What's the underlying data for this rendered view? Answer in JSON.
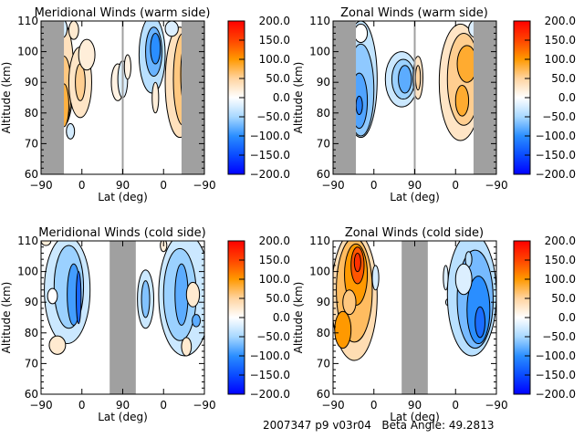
{
  "footer": {
    "text": "2007347 p9 v03r04   Beta Angle: 49.2813"
  },
  "colorbar": {
    "ticks": [
      "200.0",
      "150.0",
      "100.0",
      "50.0",
      "0.0",
      "−50.0",
      "−100.0",
      "−150.0",
      "−200.0"
    ],
    "range": [
      -200,
      200
    ],
    "stops": [
      {
        "v": 200,
        "c": "#ff0000"
      },
      {
        "v": 150,
        "c": "#ff4400"
      },
      {
        "v": 100,
        "c": "#ff9900"
      },
      {
        "v": 50,
        "c": "#ffd4a0"
      },
      {
        "v": 0,
        "c": "#ffffff"
      },
      {
        "v": -50,
        "c": "#a8d8ff"
      },
      {
        "v": -100,
        "c": "#2a8eff"
      },
      {
        "v": -150,
        "c": "#0a4bff"
      },
      {
        "v": -200,
        "c": "#0000ff"
      }
    ]
  },
  "chart_data": [
    {
      "type": "heatmap",
      "id": "meridional-warm",
      "title": "Meridional Winds (warm side)",
      "xlabel": "Lat (deg)",
      "ylabel": "Altitude (km)",
      "xticks": [
        "−90",
        "0",
        "90",
        "0",
        "−90"
      ],
      "yticks": [
        "60",
        "70",
        "80",
        "90",
        "100",
        "110"
      ],
      "ylim": [
        60,
        110
      ],
      "xlim_note": "two half-orbits: -90 to 90 (ascending), 90 to -90 (descending)",
      "gray_bands": [
        [
          -90,
          -70
        ],
        [
          -70,
          -90
        ]
      ],
      "divider": "90",
      "colorbar_range": [
        -200,
        200
      ],
      "features": [
        {
          "region": "lat -70..-30",
          "alt": [
            75,
            110
          ],
          "value_range": [
            0,
            75
          ],
          "sign": "positive"
        },
        {
          "region": "lat -60..-50",
          "alt": [
            73,
            78
          ],
          "value": -25
        },
        {
          "region": "lat 90 ascending",
          "alt": [
            85,
            100
          ],
          "value_range": [
            -25,
            25
          ]
        },
        {
          "region": "lat 0..-40 descending",
          "alt": [
            93,
            110
          ],
          "value_range": [
            -100,
            0
          ]
        },
        {
          "region": "lat 0..-70 descending",
          "alt": [
            75,
            110
          ],
          "value_range": [
            0,
            75
          ]
        }
      ]
    },
    {
      "type": "heatmap",
      "id": "zonal-warm",
      "title": "Zonal Winds (warm side)",
      "xlabel": "Lat (deg)",
      "ylabel": "Altitude (km)",
      "xticks": [
        "−90",
        "0",
        "90",
        "0",
        "−90"
      ],
      "yticks": [
        "60",
        "70",
        "80",
        "90",
        "100",
        "110"
      ],
      "ylim": [
        60,
        110
      ],
      "gray_bands": [
        [
          -90,
          -70
        ],
        [
          -70,
          -90
        ]
      ],
      "divider": "90",
      "colorbar_range": [
        -200,
        200
      ],
      "features": [
        {
          "region": "lat -70..-30 ascending",
          "alt": [
            73,
            110
          ],
          "value_range": [
            -100,
            -25
          ],
          "min": -110
        },
        {
          "region": "lat 50..90 ascending",
          "alt": [
            83,
            102
          ],
          "value_range": [
            -100,
            -25
          ]
        },
        {
          "region": "lat 90..80 descending",
          "alt": [
            85,
            99
          ],
          "value_range": [
            25,
            50
          ]
        },
        {
          "region": "lat 20..-70 descending",
          "alt": [
            75,
            110
          ],
          "value_range": [
            25,
            100
          ]
        }
      ]
    },
    {
      "type": "heatmap",
      "id": "meridional-cold",
      "title": "Meridional Winds (cold side)",
      "xlabel": "Lat (deg)",
      "ylabel": "Altitude (km)",
      "xticks": [
        "−90",
        "0",
        "90",
        "0",
        "−90"
      ],
      "yticks": [
        "60",
        "70",
        "80",
        "90",
        "100",
        "110"
      ],
      "ylim": [
        60,
        110
      ],
      "gray_bands": [
        [
          60,
          120
        ]
      ],
      "divider": "none",
      "colorbar_range": [
        -200,
        200
      ],
      "features": [
        {
          "region": "lat -90..-20",
          "alt": [
            80,
            110
          ],
          "value_range": [
            -100,
            -25
          ]
        },
        {
          "region": "lat -80..-60",
          "alt": [
            74,
            77
          ],
          "value": 25
        },
        {
          "region": "lat 40..60",
          "alt": [
            83,
            102
          ],
          "value_range": [
            -75,
            -25
          ]
        },
        {
          "region": "lat 120..135",
          "alt": [
            83,
            102
          ],
          "value_range": [
            -75,
            -25
          ]
        },
        {
          "region": "lat 0..-90 descending",
          "alt": [
            76,
            110
          ],
          "value_range": [
            -75,
            25
          ]
        },
        {
          "region": "lat -50..-60 descending",
          "alt": [
            74,
            78
          ],
          "value": 25
        }
      ]
    },
    {
      "type": "heatmap",
      "id": "zonal-cold",
      "title": "Zonal Winds (cold side)",
      "xlabel": "Lat (deg)",
      "ylabel": "Altitude (km)",
      "xticks": [
        "−90",
        "0",
        "90",
        "0",
        "−90"
      ],
      "yticks": [
        "60",
        "70",
        "80",
        "90",
        "100",
        "110"
      ],
      "ylim": [
        60,
        110
      ],
      "gray_bands": [
        [
          60,
          120
        ]
      ],
      "divider": "none",
      "colorbar_range": [
        -200,
        200
      ],
      "features": [
        {
          "region": "lat -90..-30",
          "alt": [
            74,
            110
          ],
          "value_range": [
            25,
            150
          ],
          "max_at": {
            "lat": -60,
            "alt": 103
          }
        },
        {
          "region": "lat -30..-20",
          "alt": [
            97,
            102
          ],
          "value": -25
        },
        {
          "region": "lat 40..60",
          "alt": [
            84,
            100
          ],
          "value_range": [
            25,
            50
          ]
        },
        {
          "region": "lat 125",
          "alt": [
            96,
            101
          ],
          "value": -25
        },
        {
          "region": "lat 10..-90 descending",
          "alt": [
            72,
            110
          ],
          "value_range": [
            -125,
            -25
          ],
          "min_at": {
            "lat": -60,
            "alt": 82
          }
        }
      ]
    }
  ]
}
